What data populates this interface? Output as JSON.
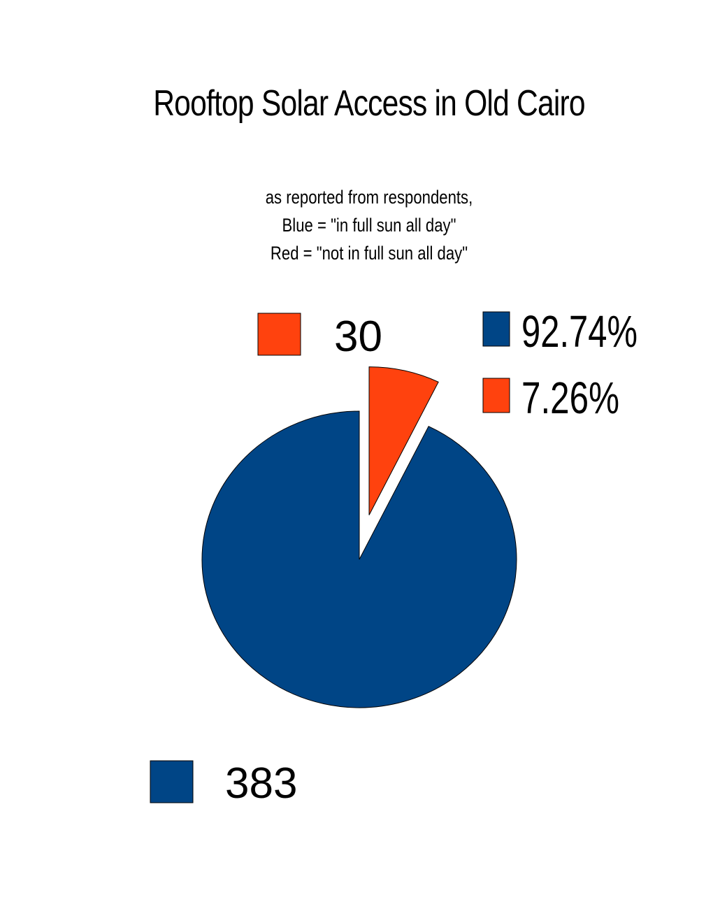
{
  "chart_data": {
    "type": "pie",
    "title": "Rooftop Solar Access in Old Cairo",
    "subtitle": [
      "as reported from respondents,",
      "Blue  = \"in full sun all day\"",
      "Red = \"not in full sun all day\""
    ],
    "slices": [
      {
        "value": 383,
        "label": "383",
        "percent_label": "92.74%",
        "color": "#004586",
        "exploded": false
      },
      {
        "value": 30,
        "label": "30",
        "percent_label": "7.26%",
        "color": "#ff420e",
        "exploded": true
      }
    ],
    "legend_position": "top-right"
  }
}
